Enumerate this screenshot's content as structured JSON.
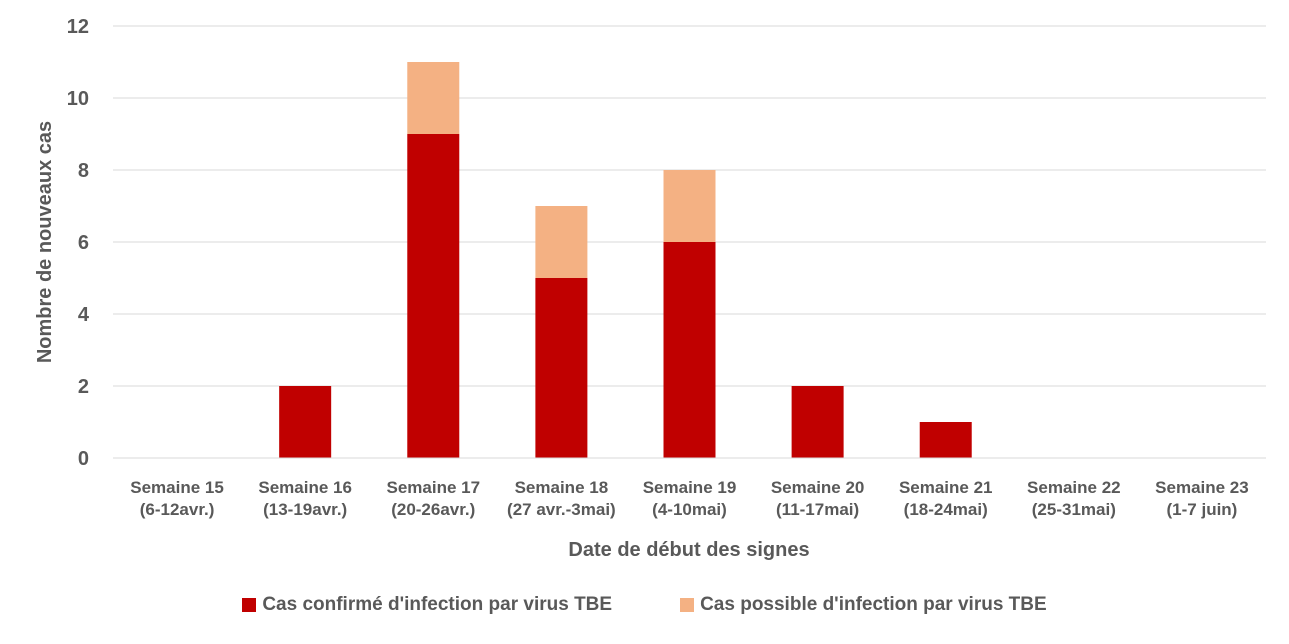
{
  "chart_data": {
    "type": "bar",
    "stacked": true,
    "categories": [
      [
        "Semaine 15",
        "(6-12avr.)"
      ],
      [
        "Semaine 16",
        "(13-19avr.)"
      ],
      [
        "Semaine 17",
        "(20-26avr.)"
      ],
      [
        "Semaine 18",
        "(27 avr.-3mai)"
      ],
      [
        "Semaine 19",
        "(4-10mai)"
      ],
      [
        "Semaine 20",
        "(11-17mai)"
      ],
      [
        "Semaine 21",
        "(18-24mai)"
      ],
      [
        "Semaine 22",
        "(25-31mai)"
      ],
      [
        "Semaine 23",
        "(1-7 juin)"
      ]
    ],
    "series": [
      {
        "name": "Cas confirmé d'infection par virus TBE",
        "color": "#C00000",
        "values": [
          0,
          2,
          9,
          5,
          6,
          2,
          1,
          0,
          0
        ]
      },
      {
        "name": "Cas possible d'infection par virus TBE",
        "color": "#F4B183",
        "values": [
          0,
          0,
          2,
          2,
          2,
          0,
          0,
          0,
          0
        ]
      }
    ],
    "xlabel": "Date de début des signes",
    "ylabel": "Nombre de nouveaux cas",
    "ylim": [
      0,
      12
    ],
    "yticks": [
      0,
      2,
      4,
      6,
      8,
      10,
      12
    ],
    "grid": true,
    "legend_position": "bottom"
  }
}
